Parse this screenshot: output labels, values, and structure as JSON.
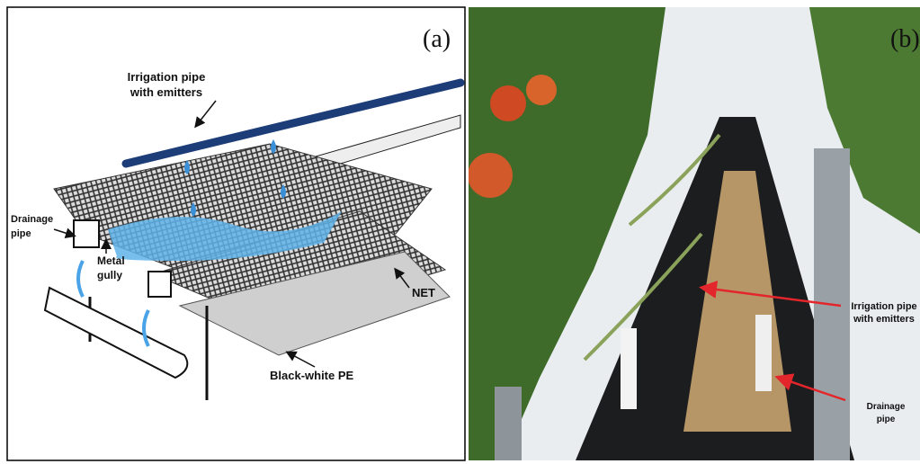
{
  "panels": [
    {
      "label": "(a)",
      "annotations": [
        {
          "lines": [
            "Irrigation pipe",
            "with emitters"
          ]
        },
        {
          "lines": [
            "Drainage",
            "pipe"
          ]
        },
        {
          "lines": [
            "Metal",
            "gully"
          ]
        },
        {
          "lines": [
            "NET"
          ]
        },
        {
          "lines": [
            "Black-white PE"
          ]
        }
      ]
    },
    {
      "label": "(b)",
      "annotations": [
        {
          "lines": [
            "Irrigation pipe",
            "with emitters"
          ]
        },
        {
          "lines": [
            "Drainage",
            "pipe"
          ]
        }
      ]
    }
  ]
}
